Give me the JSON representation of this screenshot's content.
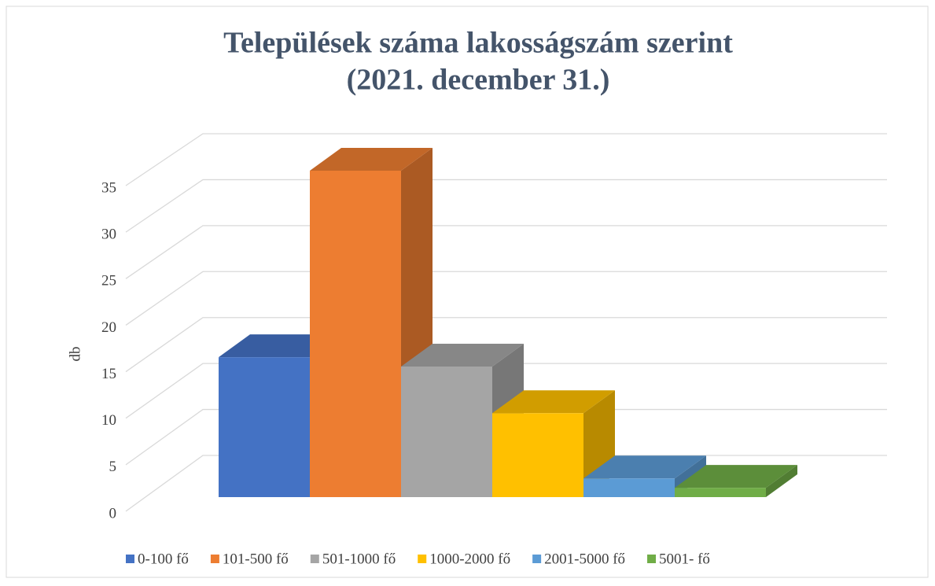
{
  "chart_data": {
    "type": "bar3d",
    "title": [
      "Települések száma lakosságszám szerint",
      "(2021. december 31.)"
    ],
    "y_label": "db",
    "series": [
      {
        "name": "0-100 fő",
        "color": "#4472c4",
        "values": [
          15
        ]
      },
      {
        "name": "101-500 fő",
        "color": "#ed7d31",
        "values": [
          35
        ]
      },
      {
        "name": "501-1000 fő",
        "color": "#a5a5a5",
        "values": [
          14
        ]
      },
      {
        "name": "1000-2000 fő",
        "color": "#ffc000",
        "values": [
          9
        ]
      },
      {
        "name": "2001-5000 fő",
        "color": "#5b9bd5",
        "values": [
          2
        ]
      },
      {
        "name": "5001- fő",
        "color": "#70ad47",
        "values": [
          1
        ]
      }
    ],
    "ylim": [
      0,
      35
    ],
    "yticks": [
      0,
      5,
      10,
      15,
      20,
      25,
      30,
      35
    ],
    "grid": true,
    "legend": "bottom"
  }
}
